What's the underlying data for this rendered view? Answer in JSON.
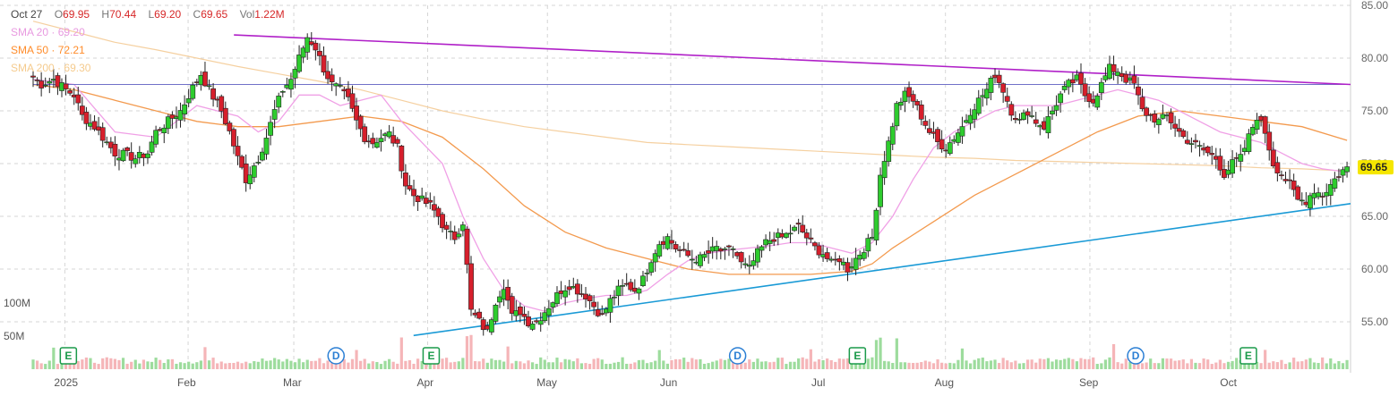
{
  "legend": {
    "date": "Oct 27",
    "o_label": "O",
    "o": "69.95",
    "h_label": "H",
    "h": "70.44",
    "l_label": "L",
    "l": "69.20",
    "c_label": "C",
    "c": "69.65",
    "vol_label": "Vol",
    "vol": "1.22M",
    "sma20_label": "SMA 20",
    "sma20": "69.20",
    "sma50_label": "SMA 50",
    "sma50": "72.21",
    "sma200_label": "SMA 200",
    "sma200": "69.30",
    "sep": "·"
  },
  "last_price_tag": "69.65",
  "colors": {
    "up": "#2ecc2e",
    "down": "#d61f2c",
    "wick": "#222222",
    "sma20": "#f0a0e6",
    "sma50": "#f39a4e",
    "sma200": "#f5d0a0",
    "trend_top": "#b020c8",
    "trend_bottom": "#1a9ad6",
    "hline": "#7070c8",
    "vol_up": "#9ddc9d",
    "vol_down": "#f5b5b8",
    "event": "#1a9a4a",
    "dividend": "#2b7fd4",
    "price_tag_bg": "#f5e600"
  },
  "chart_data": {
    "type": "candlestick",
    "title": "",
    "ylim": [
      50.5,
      85
    ],
    "y_ticks": [
      "85.00",
      "80.00",
      "75.00",
      "70.00",
      "65.00",
      "60.00",
      "55.00"
    ],
    "y_tick_values": [
      85,
      80,
      75,
      70,
      65,
      60,
      55
    ],
    "x_tick_labels": [
      "2025",
      "Feb",
      "Mar",
      "Apr",
      "May",
      "Jun",
      "Jul",
      "Aug",
      "Sep",
      "Oct"
    ],
    "x_tick_days": [
      9,
      44,
      74,
      112,
      146,
      181,
      224,
      259,
      300,
      340
    ],
    "volume_labels": [
      "100M",
      "50M"
    ],
    "volume_ticks_m": [
      100,
      50
    ],
    "horizontal_line": 77.5,
    "trendlines": [
      {
        "name": "top",
        "from": {
          "day": 57,
          "value": 82.2
        },
        "to": {
          "day": 374,
          "value": 77.5
        }
      },
      {
        "name": "bottom",
        "from": {
          "day": 108,
          "value": 53.7
        },
        "to": {
          "day": 374,
          "value": 66.2
        }
      }
    ],
    "events": [
      {
        "type": "E",
        "day": 10
      },
      {
        "type": "D",
        "day": 86
      },
      {
        "type": "E",
        "day": 113
      },
      {
        "type": "D",
        "day": 200
      },
      {
        "type": "E",
        "day": 234
      },
      {
        "type": "D",
        "day": 313
      },
      {
        "type": "E",
        "day": 345
      }
    ],
    "anchors": [
      [
        0,
        78.2
      ],
      [
        2,
        77.5
      ],
      [
        5,
        78.0
      ],
      [
        8,
        77.0
      ],
      [
        10,
        76.5
      ],
      [
        12,
        74.5
      ],
      [
        15,
        73.5
      ],
      [
        18,
        72.0
      ],
      [
        20,
        71.0
      ],
      [
        23,
        70.8
      ],
      [
        25,
        70.5
      ],
      [
        28,
        71.0
      ],
      [
        30,
        73.0
      ],
      [
        33,
        74.0
      ],
      [
        36,
        75.0
      ],
      [
        39,
        77.2
      ],
      [
        41,
        78.5
      ],
      [
        43,
        77.0
      ],
      [
        46,
        75.0
      ],
      [
        48,
        73.0
      ],
      [
        50,
        70.5
      ],
      [
        52,
        68.5
      ],
      [
        55,
        70.5
      ],
      [
        57,
        72.5
      ],
      [
        59,
        75.0
      ],
      [
        61,
        77.0
      ],
      [
        63,
        78.0
      ],
      [
        65,
        80.0
      ],
      [
        67,
        82.0
      ],
      [
        69,
        81.0
      ],
      [
        71,
        79.0
      ],
      [
        73,
        77.5
      ],
      [
        75,
        77.0
      ],
      [
        77,
        76.0
      ],
      [
        79,
        74.0
      ],
      [
        81,
        72.5
      ],
      [
        83,
        72.0
      ],
      [
        85,
        72.5
      ],
      [
        87,
        72.8
      ],
      [
        89,
        71.5
      ],
      [
        91,
        68.0
      ],
      [
        93,
        67.0
      ],
      [
        95,
        66.5
      ],
      [
        97,
        66.0
      ],
      [
        99,
        65.0
      ],
      [
        101,
        63.5
      ],
      [
        103,
        63.0
      ],
      [
        105,
        64.5
      ],
      [
        107,
        56.0
      ],
      [
        109,
        55.0
      ],
      [
        111,
        54.0
      ],
      [
        113,
        57.0
      ],
      [
        115,
        58.5
      ],
      [
        117,
        55.5
      ],
      [
        119,
        56.0
      ],
      [
        121,
        55.0
      ],
      [
        123,
        55.0
      ],
      [
        125,
        56.0
      ],
      [
        127,
        57.0
      ],
      [
        129,
        58.0
      ],
      [
        131,
        58.5
      ],
      [
        133,
        58.0
      ],
      [
        135,
        57.5
      ],
      [
        137,
        56.5
      ],
      [
        139,
        55.5
      ],
      [
        141,
        57.0
      ],
      [
        143,
        58.0
      ],
      [
        145,
        58.5
      ],
      [
        147,
        58.0
      ],
      [
        149,
        59.0
      ],
      [
        151,
        61.0
      ],
      [
        153,
        62.5
      ],
      [
        155,
        63.0
      ],
      [
        157,
        62.0
      ],
      [
        159,
        61.5
      ],
      [
        161,
        61.0
      ],
      [
        163,
        61.0
      ],
      [
        165,
        61.5
      ],
      [
        167,
        62.0
      ],
      [
        169,
        61.5
      ],
      [
        171,
        62.0
      ],
      [
        173,
        60.5
      ],
      [
        175,
        60.0
      ],
      [
        177,
        61.5
      ],
      [
        179,
        62.5
      ],
      [
        181,
        63.0
      ],
      [
        183,
        63.0
      ],
      [
        185,
        63.5
      ],
      [
        187,
        64.0
      ],
      [
        189,
        63.0
      ],
      [
        191,
        62.0
      ],
      [
        193,
        61.5
      ],
      [
        195,
        60.5
      ],
      [
        197,
        61.0
      ],
      [
        199,
        60.0
      ],
      [
        201,
        61.0
      ],
      [
        203,
        62.0
      ],
      [
        205,
        63.0
      ],
      [
        207,
        69.0
      ],
      [
        209,
        72.0
      ],
      [
        211,
        75.5
      ],
      [
        213,
        76.5
      ],
      [
        215,
        76.0
      ],
      [
        217,
        74.5
      ],
      [
        219,
        73.0
      ],
      [
        221,
        72.0
      ],
      [
        223,
        71.5
      ],
      [
        225,
        72.5
      ],
      [
        227,
        73.5
      ],
      [
        229,
        75.0
      ],
      [
        231,
        76.0
      ],
      [
        233,
        77.0
      ],
      [
        235,
        78.5
      ],
      [
        237,
        77.0
      ],
      [
        239,
        75.0
      ],
      [
        241,
        74.0
      ],
      [
        243,
        75.0
      ],
      [
        245,
        74.0
      ],
      [
        247,
        73.5
      ],
      [
        249,
        75.0
      ],
      [
        251,
        76.5
      ],
      [
        253,
        77.5
      ],
      [
        255,
        78.0
      ],
      [
        257,
        76.5
      ],
      [
        259,
        76.0
      ],
      [
        261,
        77.5
      ],
      [
        263,
        79.0
      ],
      [
        265,
        78.8
      ],
      [
        267,
        78.0
      ],
      [
        269,
        77.5
      ],
      [
        271,
        75.0
      ],
      [
        273,
        74.5
      ],
      [
        275,
        74.0
      ],
      [
        277,
        74.5
      ],
      [
        279,
        73.5
      ],
      [
        281,
        72.5
      ],
      [
        283,
        72.0
      ],
      [
        285,
        71.5
      ],
      [
        287,
        71.0
      ],
      [
        289,
        70.5
      ],
      [
        291,
        69.0
      ],
      [
        293,
        70.0
      ],
      [
        295,
        70.5
      ],
      [
        297,
        72.5
      ],
      [
        299,
        74.5
      ],
      [
        301,
        73.0
      ],
      [
        303,
        70.0
      ],
      [
        305,
        69.0
      ],
      [
        307,
        68.0
      ],
      [
        309,
        66.5
      ],
      [
        311,
        66.5
      ],
      [
        313,
        67.5
      ],
      [
        315,
        67.0
      ],
      [
        317,
        68.0
      ],
      [
        319,
        69.0
      ],
      [
        321,
        69.7
      ]
    ],
    "sma20_pts": [
      [
        0,
        78
      ],
      [
        10,
        77.5
      ],
      [
        20,
        73
      ],
      [
        30,
        72.5
      ],
      [
        40,
        75.5
      ],
      [
        50,
        74.5
      ],
      [
        55,
        73
      ],
      [
        60,
        74
      ],
      [
        65,
        76.5
      ],
      [
        70,
        76.5
      ],
      [
        75,
        75.5
      ],
      [
        80,
        76
      ],
      [
        85,
        76.5
      ],
      [
        90,
        74
      ],
      [
        95,
        72
      ],
      [
        100,
        70
      ],
      [
        105,
        65
      ],
      [
        110,
        61
      ],
      [
        115,
        58
      ],
      [
        120,
        56.5
      ],
      [
        125,
        56
      ],
      [
        130,
        56.8
      ],
      [
        135,
        57.2
      ],
      [
        140,
        57.5
      ],
      [
        145,
        57.5
      ],
      [
        150,
        58
      ],
      [
        155,
        59.5
      ],
      [
        160,
        60.8
      ],
      [
        165,
        61.5
      ],
      [
        170,
        61.8
      ],
      [
        175,
        62
      ],
      [
        180,
        62.2
      ],
      [
        185,
        62.5
      ],
      [
        190,
        62.5
      ],
      [
        195,
        62
      ],
      [
        200,
        61.5
      ],
      [
        205,
        62.5
      ],
      [
        210,
        65
      ],
      [
        215,
        68.5
      ],
      [
        220,
        71.5
      ],
      [
        225,
        73
      ],
      [
        230,
        74
      ],
      [
        235,
        75
      ],
      [
        240,
        75.5
      ],
      [
        245,
        75.5
      ],
      [
        250,
        75.5
      ],
      [
        255,
        76
      ],
      [
        260,
        76.5
      ],
      [
        265,
        77
      ],
      [
        270,
        76.5
      ],
      [
        275,
        76
      ],
      [
        280,
        75
      ],
      [
        285,
        74
      ],
      [
        290,
        73
      ],
      [
        295,
        72.5
      ],
      [
        300,
        72
      ],
      [
        305,
        71
      ],
      [
        310,
        70
      ],
      [
        315,
        69.5
      ],
      [
        321,
        69.2
      ]
    ],
    "sma50_pts": [
      [
        0,
        77.5
      ],
      [
        10,
        77
      ],
      [
        20,
        76
      ],
      [
        30,
        75
      ],
      [
        40,
        74
      ],
      [
        50,
        73.5
      ],
      [
        60,
        73.5
      ],
      [
        70,
        74
      ],
      [
        80,
        74.5
      ],
      [
        90,
        74
      ],
      [
        100,
        72.5
      ],
      [
        110,
        69.5
      ],
      [
        120,
        66
      ],
      [
        130,
        63.5
      ],
      [
        140,
        62
      ],
      [
        150,
        61
      ],
      [
        160,
        60
      ],
      [
        170,
        59.5
      ],
      [
        180,
        59.5
      ],
      [
        190,
        59.5
      ],
      [
        200,
        59.8
      ],
      [
        205,
        60.5
      ],
      [
        210,
        62
      ],
      [
        220,
        64.5
      ],
      [
        230,
        67
      ],
      [
        240,
        69
      ],
      [
        250,
        71
      ],
      [
        260,
        73
      ],
      [
        270,
        74.5
      ],
      [
        280,
        75
      ],
      [
        290,
        74.5
      ],
      [
        300,
        74
      ],
      [
        310,
        73.5
      ],
      [
        321,
        72.2
      ]
    ],
    "sma200_pts": [
      [
        0,
        83.5
      ],
      [
        10,
        82.5
      ],
      [
        20,
        81.5
      ],
      [
        30,
        80.8
      ],
      [
        40,
        80
      ],
      [
        50,
        79.2
      ],
      [
        60,
        78.5
      ],
      [
        70,
        77.8
      ],
      [
        80,
        77
      ],
      [
        90,
        76
      ],
      [
        100,
        75
      ],
      [
        110,
        74.2
      ],
      [
        120,
        73.5
      ],
      [
        130,
        73
      ],
      [
        140,
        72.5
      ],
      [
        150,
        72
      ],
      [
        160,
        71.8
      ],
      [
        170,
        71.6
      ],
      [
        180,
        71.4
      ],
      [
        190,
        71.2
      ],
      [
        200,
        71
      ],
      [
        210,
        70.8
      ],
      [
        220,
        70.6
      ],
      [
        230,
        70.5
      ],
      [
        240,
        70.3
      ],
      [
        250,
        70.2
      ],
      [
        260,
        70.1
      ],
      [
        270,
        70
      ],
      [
        280,
        69.9
      ],
      [
        290,
        69.8
      ],
      [
        300,
        69.6
      ],
      [
        310,
        69.5
      ],
      [
        321,
        69.3
      ]
    ]
  }
}
